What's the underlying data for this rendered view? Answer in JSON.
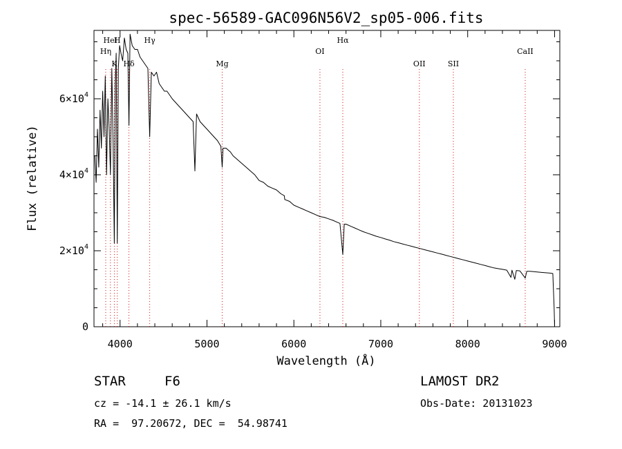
{
  "chart_data": {
    "type": "line",
    "title": "spec-56589-GAC096N56V2_sp05-006.fits",
    "xlabel": "Wavelength (Å)",
    "ylabel": "Flux (relative)",
    "xlim": [
      3700,
      9060
    ],
    "ylim": [
      0,
      78000
    ],
    "xticks": [
      4000,
      5000,
      6000,
      7000,
      8000,
      9000
    ],
    "xtick_labels": [
      "4000",
      "5000",
      "6000",
      "7000",
      "8000",
      "9000"
    ],
    "yticks": [
      0,
      20000,
      40000,
      60000
    ],
    "ytick_labels": [
      {
        "mantissa": "0",
        "exp": ""
      },
      {
        "mantissa": "2×10",
        "exp": "4"
      },
      {
        "mantissa": "4×10",
        "exp": "4"
      },
      {
        "mantissa": "6×10",
        "exp": "4"
      }
    ],
    "lines": [
      {
        "label": "HeI",
        "wave": 3889
      },
      {
        "label": "Hη",
        "wave": 3835
      },
      {
        "label": "K",
        "wave": 3934
      },
      {
        "label": "H",
        "wave": 3968
      },
      {
        "label": "Hδ",
        "wave": 4102
      },
      {
        "label": "Hγ",
        "wave": 4341
      },
      {
        "label": "Mg",
        "wave": 5175
      },
      {
        "label": "OI",
        "wave": 6300
      },
      {
        "label": "Hα",
        "wave": 6563
      },
      {
        "label": "OII",
        "wave": 7444
      },
      {
        "label": "SII",
        "wave": 7835
      },
      {
        "label": "CaII",
        "wave": 8662
      }
    ],
    "series": [
      {
        "x": [
          3710,
          3725,
          3740,
          3755,
          3770,
          3785,
          3800,
          3815,
          3830,
          3845,
          3860,
          3875,
          3889,
          3905,
          3920,
          3934,
          3945,
          3955,
          3968,
          3980,
          3995,
          4010,
          4030,
          4050,
          4070,
          4090,
          4102,
          4115,
          4140,
          4170,
          4200,
          4230,
          4260,
          4290,
          4320,
          4341,
          4360,
          4390,
          4420,
          4450,
          4480,
          4510,
          4540,
          4570,
          4600,
          4640,
          4680,
          4720,
          4760,
          4800,
          4840,
          4861,
          4880,
          4920,
          4960,
          5000,
          5040,
          5080,
          5120,
          5160,
          5175,
          5185,
          5220,
          5270,
          5300,
          5350,
          5400,
          5450,
          5500,
          5550,
          5600,
          5650,
          5700,
          5750,
          5800,
          5850,
          5890,
          5895,
          5950,
          6000,
          6050,
          6100,
          6150,
          6200,
          6250,
          6300,
          6350,
          6400,
          6450,
          6500,
          6530,
          6563,
          6580,
          6600,
          6650,
          6700,
          6750,
          6800,
          6850,
          6900,
          6950,
          7000,
          7050,
          7100,
          7150,
          7200,
          7250,
          7300,
          7350,
          7400,
          7450,
          7500,
          7550,
          7600,
          7650,
          7700,
          7750,
          7800,
          7850,
          7900,
          7950,
          8000,
          8050,
          8100,
          8150,
          8200,
          8250,
          8300,
          8350,
          8400,
          8450,
          8498,
          8510,
          8542,
          8560,
          8600,
          8662,
          8680,
          8720,
          8760,
          8800,
          8850,
          8900,
          8950,
          8980,
          8995,
          9000
        ],
        "y": [
          45000,
          38000,
          52000,
          42000,
          57000,
          47000,
          62000,
          50000,
          66000,
          40000,
          60000,
          52000,
          40000,
          68000,
          48000,
          22000,
          64000,
          72000,
          22000,
          68000,
          74000,
          72000,
          70000,
          76000,
          73000,
          72000,
          53000,
          77000,
          74000,
          73000,
          73000,
          71000,
          70000,
          69000,
          68000,
          50000,
          67000,
          66000,
          67000,
          64000,
          63000,
          62000,
          62000,
          61000,
          60000,
          59000,
          58000,
          57000,
          56000,
          55000,
          54000,
          41000,
          56000,
          54000,
          53000,
          52000,
          51000,
          50000,
          49000,
          47500,
          42000,
          47000,
          47000,
          46000,
          45000,
          44000,
          43000,
          42000,
          41000,
          40000,
          38500,
          38000,
          37000,
          36500,
          36000,
          35000,
          34500,
          33500,
          33000,
          32000,
          31500,
          31000,
          30500,
          30000,
          29500,
          29000,
          28800,
          28400,
          28000,
          27500,
          27200,
          19000,
          27000,
          27000,
          26500,
          26000,
          25500,
          25000,
          24600,
          24200,
          23800,
          23500,
          23100,
          22800,
          22400,
          22100,
          21800,
          21500,
          21200,
          20900,
          20600,
          20300,
          20000,
          19700,
          19400,
          19100,
          18800,
          18500,
          18200,
          17900,
          17600,
          17300,
          17000,
          16700,
          16400,
          16100,
          15800,
          15500,
          15300,
          15100,
          14900,
          13000,
          14900,
          12500,
          14800,
          14700,
          12800,
          14600,
          14600,
          14500,
          14400,
          14300,
          14200,
          14100,
          14000,
          5000,
          0
        ]
      }
    ]
  },
  "info": {
    "class_label": "STAR",
    "subclass": "F6",
    "survey": "LAMOST DR2",
    "cz": "cz = -14.1 ± 26.1 km/s",
    "obs_date": "Obs-Date: 20131023",
    "coords": "RA =  97.20672, DEC =  54.98741"
  }
}
